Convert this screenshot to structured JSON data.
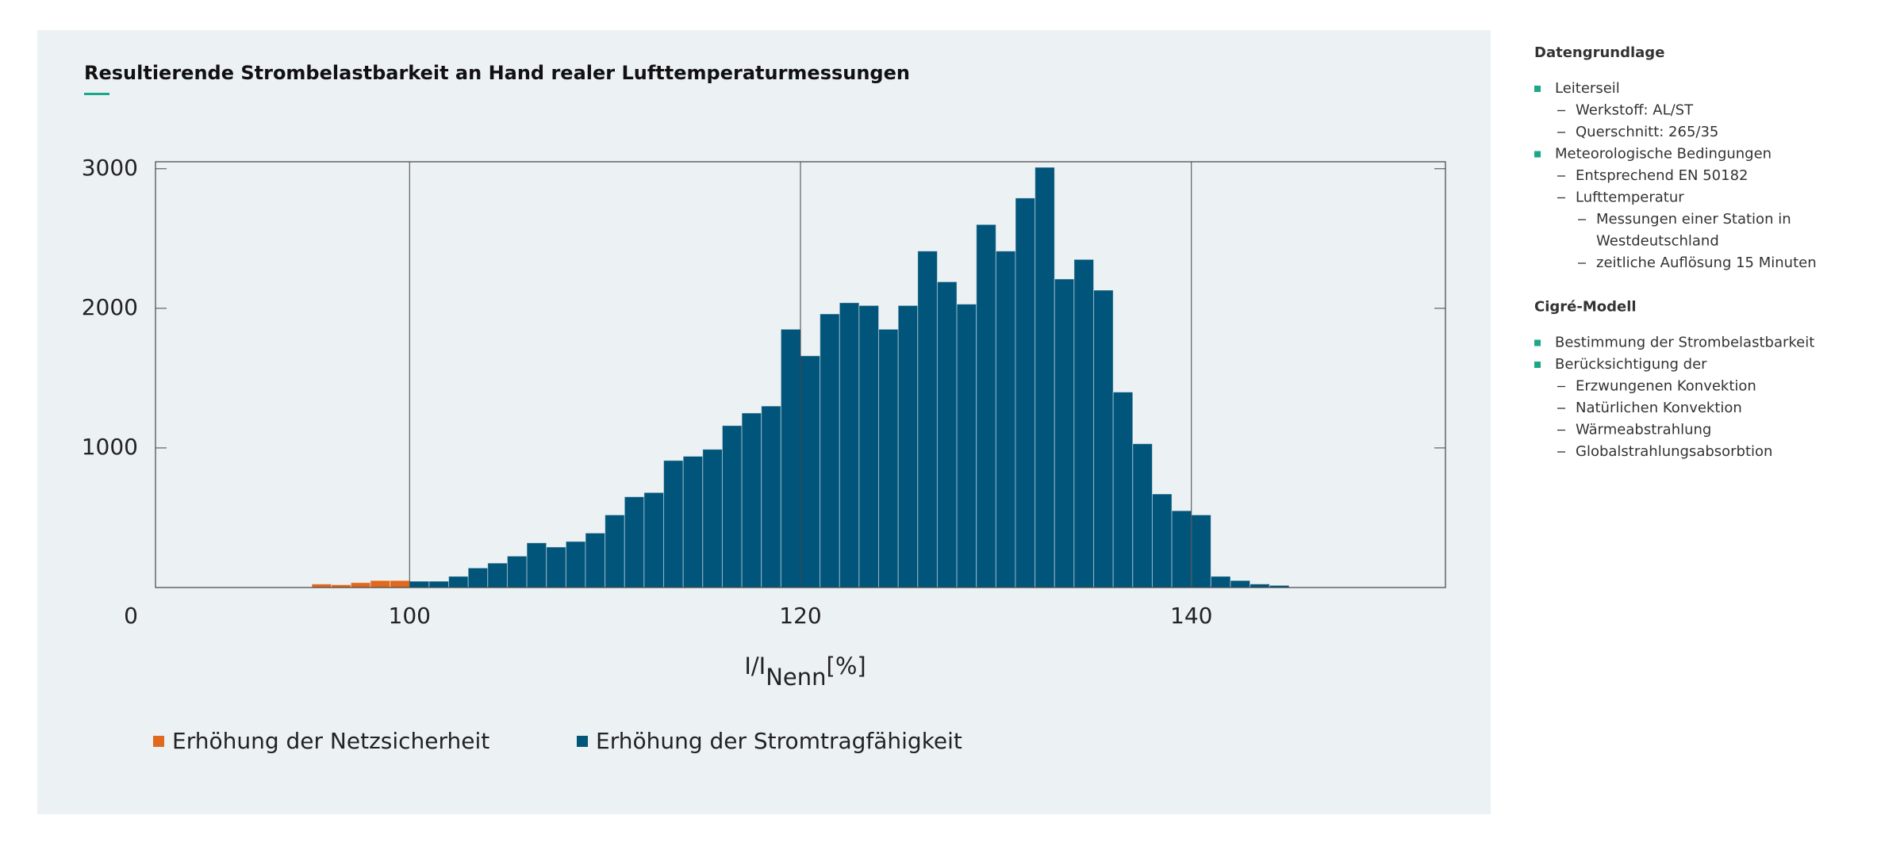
{
  "chart_data": {
    "type": "histogram",
    "title": "Resultierende Strombelastbarkeit an Hand realer Lufttemperaturmessungen",
    "x_label": {
      "main": "I/I",
      "sub": "Nenn",
      "unit": "[%]"
    },
    "xlim": [
      87,
      153
    ],
    "xticks": [
      100,
      120,
      140
    ],
    "x_grid": true,
    "ylim": [
      0,
      3050
    ],
    "yticks": [
      0,
      1000,
      2000,
      3000
    ],
    "series": [
      {
        "name": "Erhöhung der Netzsicherheit",
        "color": "#e0691f",
        "bins": [
          95,
          96,
          97,
          98,
          99,
          100
        ],
        "values": [
          25,
          20,
          35,
          50,
          50
        ]
      },
      {
        "name": "Erhöhung der Stromtragfähigkeit",
        "color": "#02557a",
        "bins": [
          100,
          101,
          102,
          103,
          104,
          105,
          106,
          107,
          108,
          109,
          110,
          111,
          112,
          113,
          114,
          115,
          116,
          117,
          118,
          119,
          120,
          121,
          122,
          123,
          124,
          125,
          126,
          127,
          128,
          129,
          130,
          131,
          132,
          133,
          134,
          135,
          136,
          137,
          138,
          139,
          140,
          141,
          142,
          143,
          144,
          145
        ],
        "values": [
          45,
          45,
          80,
          140,
          175,
          225,
          320,
          290,
          330,
          390,
          520,
          650,
          680,
          910,
          940,
          990,
          1160,
          1250,
          1300,
          1850,
          1660,
          1960,
          2040,
          2020,
          1850,
          2020,
          2410,
          2190,
          2030,
          2600,
          2410,
          2790,
          3010,
          2210,
          2350,
          2130,
          1400,
          1030,
          670,
          550,
          520,
          80,
          50,
          25,
          15
        ]
      }
    ]
  },
  "sidebar": [
    {
      "heading": "Datengrundlage",
      "items": [
        {
          "text": "Leiterseil",
          "children": [
            {
              "text": "Werkstoff: AL/ST"
            },
            {
              "text": "Querschnitt: 265/35"
            }
          ]
        },
        {
          "text": "Meteorologische Bedingungen",
          "children": [
            {
              "text": "Entsprechend EN 50182"
            },
            {
              "text": "Lufttemperatur",
              "children": [
                {
                  "text": [
                    "Messungen einer Station in",
                    "Westdeutschland"
                  ]
                },
                {
                  "text": "zeitliche Auflösung 15 Minuten"
                }
              ]
            }
          ]
        }
      ]
    },
    {
      "heading": "Cigré-Modell",
      "items": [
        {
          "text": "Bestimmung der Strombelastbarkeit"
        },
        {
          "text": "Berücksichtigung der",
          "children": [
            {
              "text": "Erzwungenen Konvektion"
            },
            {
              "text": "Natürlichen Konvektion"
            },
            {
              "text": "Wärmeabstrahlung"
            },
            {
              "text": "Globalstrahlungsabsorbtion"
            }
          ]
        }
      ]
    }
  ]
}
